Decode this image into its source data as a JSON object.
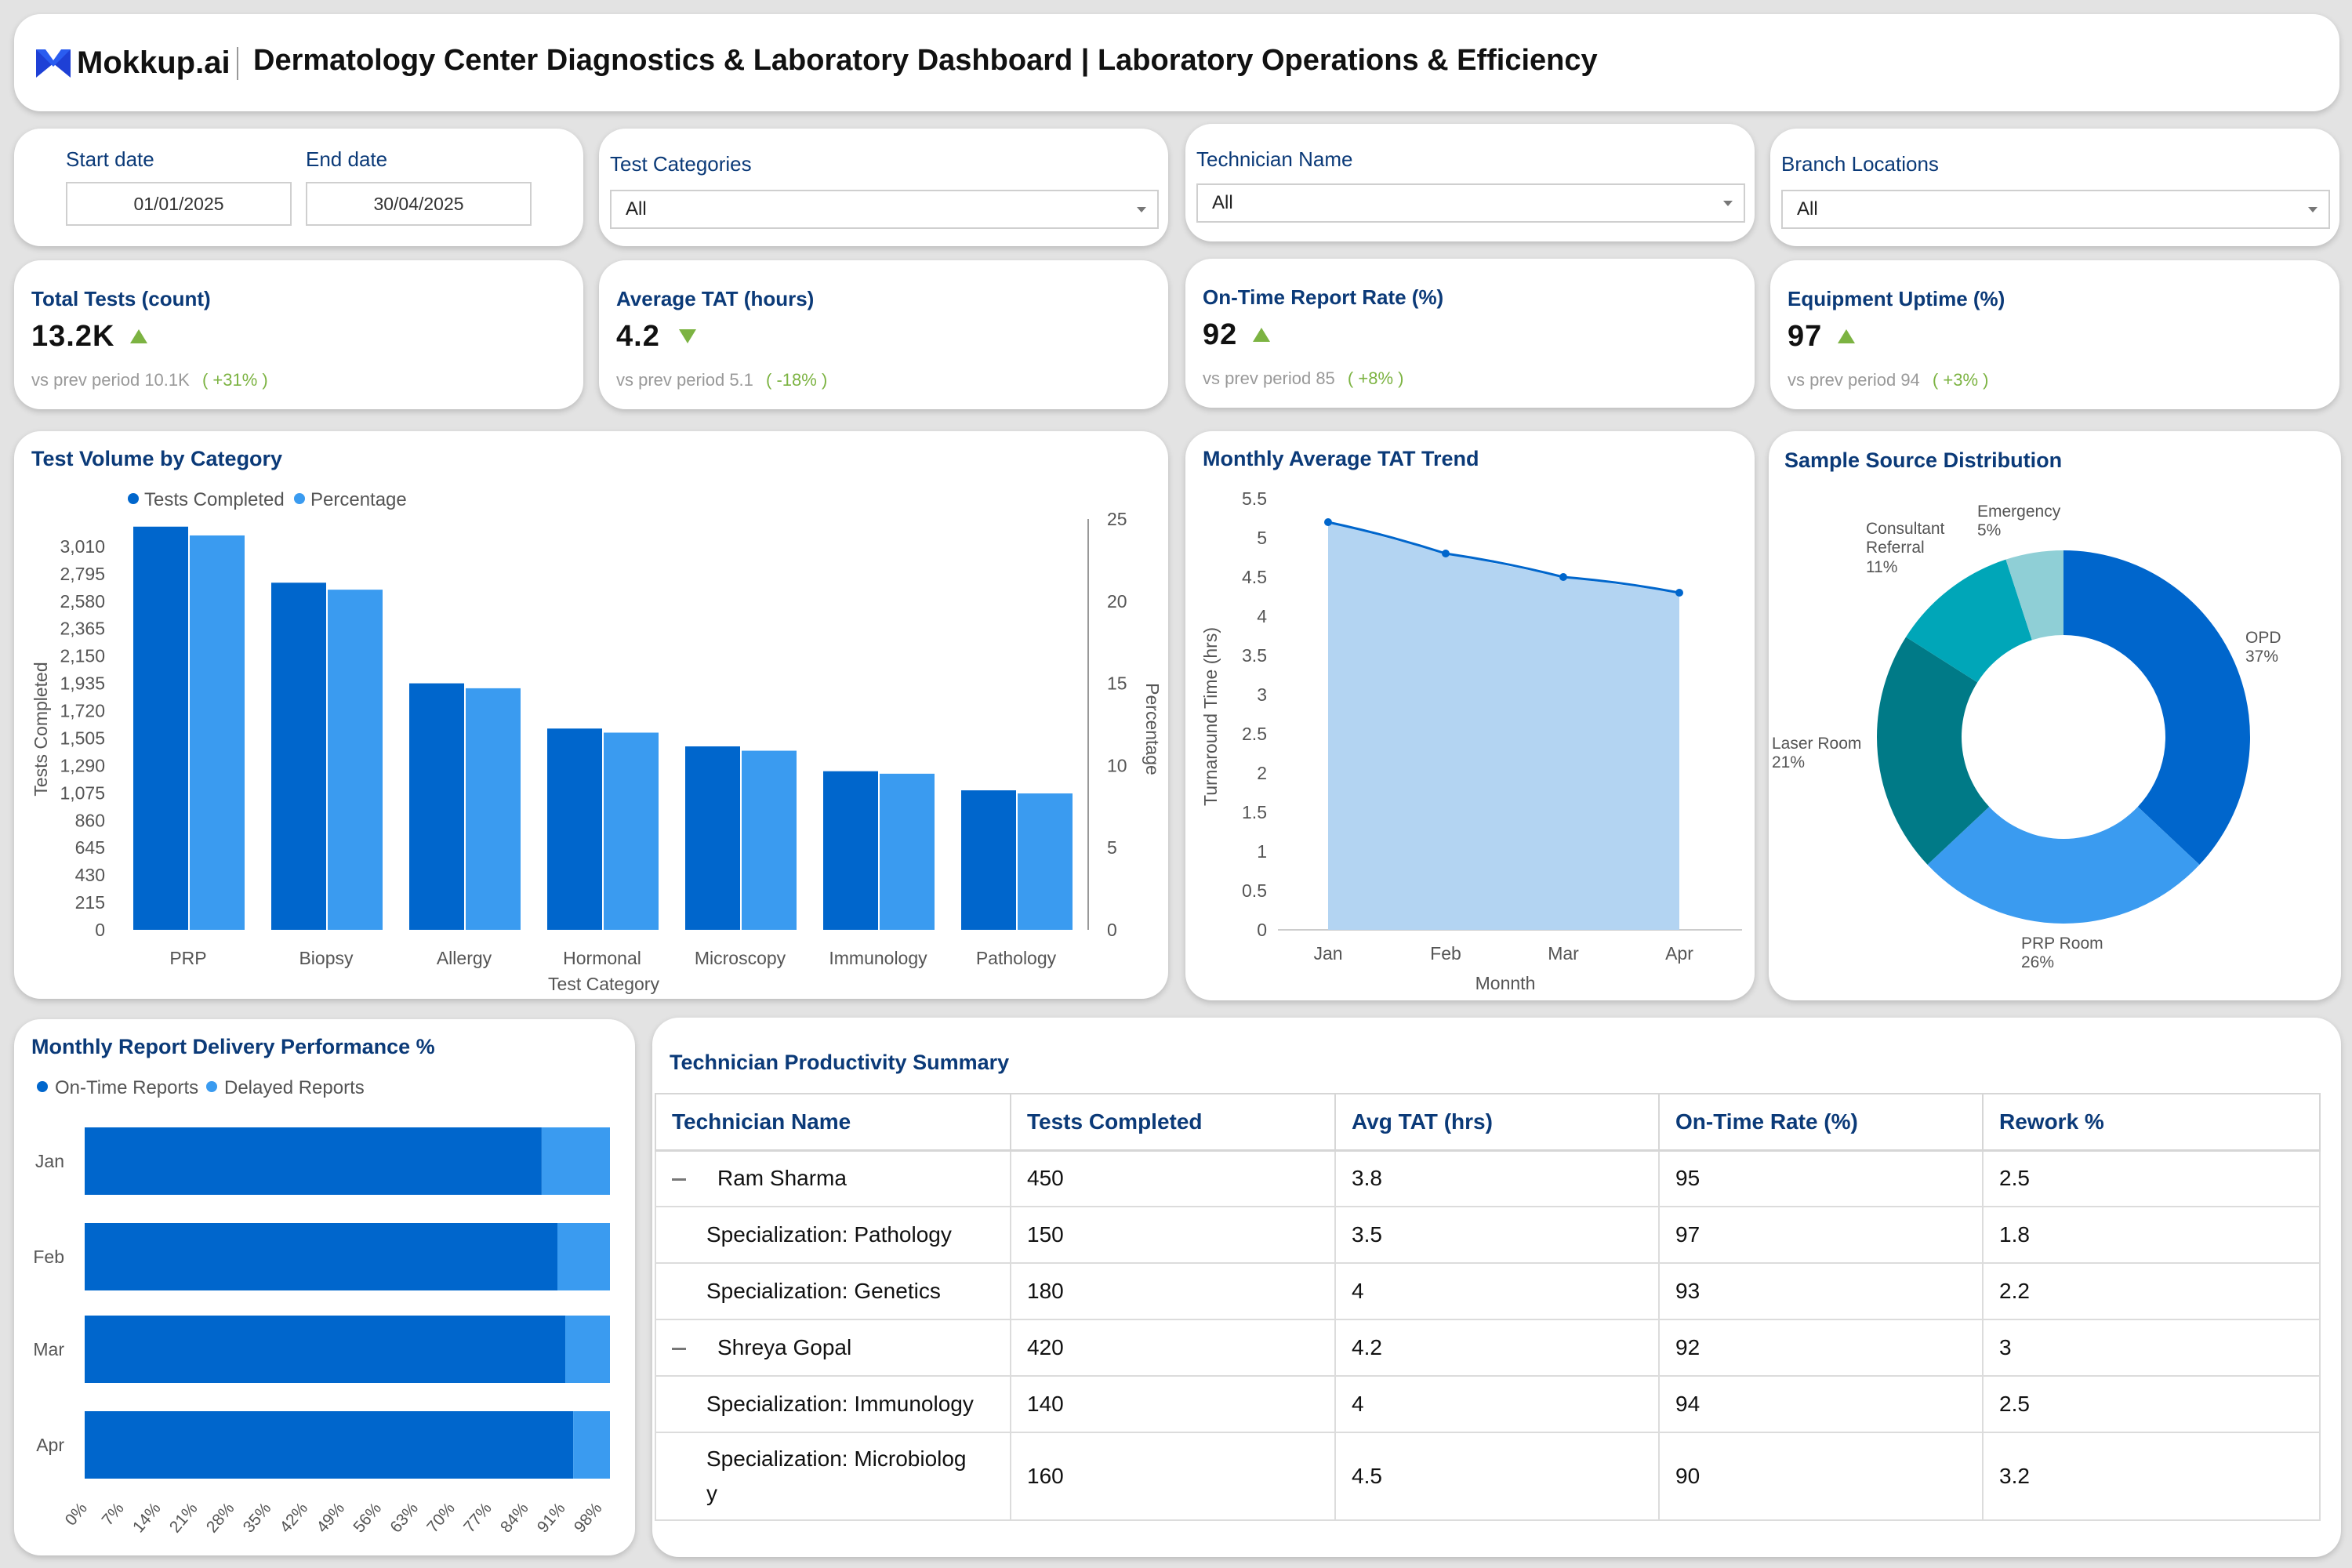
{
  "header": {
    "logo": "Mokkup.ai",
    "title": "Dermatology Center Diagnostics & Laboratory Dashboard | Laboratory Operations & Efficiency"
  },
  "filters": {
    "start_date_label": "Start date",
    "start_date": "01/01/2025",
    "end_date_label": "End date",
    "end_date": "30/04/2025",
    "test_categories_label": "Test Categories",
    "test_categories_value": "All",
    "technician_label": "Technician Name",
    "technician_value": "All",
    "branch_label": "Branch Locations",
    "branch_value": "All"
  },
  "kpis": [
    {
      "label": "Total Tests (count)",
      "value": "13.2K",
      "trend": "up",
      "prev_label": "vs prev period",
      "prev": "10.1K",
      "change": "( +31% )"
    },
    {
      "label": "Average TAT (hours)",
      "value": "4.2",
      "trend": "down",
      "prev_label": "vs prev period",
      "prev": "5.1",
      "change": "( -18% )"
    },
    {
      "label": "On-Time Report Rate (%)",
      "value": "92",
      "trend": "up",
      "prev_label": "vs prev period",
      "prev": "85",
      "change": "( +8% )"
    },
    {
      "label": "Equipment Uptime (%)",
      "value": "97",
      "trend": "up",
      "prev_label": "vs prev period",
      "prev": "94",
      "change": "( +3% )"
    }
  ],
  "colors": {
    "dark_blue": "#0066cc",
    "light_blue": "#3a9bf0",
    "area_fill": "#b3d4f2",
    "teal": "#007a87",
    "cyan": "#00a6b8",
    "pale_teal": "#8fcfd6",
    "up_green": "#7cb342"
  },
  "chart_data": [
    {
      "type": "bar",
      "title": "Test Volume by Category",
      "categories": [
        "PRP",
        "Biopsy",
        "Allergy",
        "Hormonal",
        "Microscopy",
        "Immunology",
        "Pathology"
      ],
      "series": [
        {
          "name": "Tests Completed",
          "values": [
            3165,
            2725,
            1935,
            1580,
            1440,
            1245,
            1095
          ]
        },
        {
          "name": "Percentage",
          "values": [
            24.0,
            20.7,
            14.7,
            12.0,
            10.9,
            9.5,
            8.3
          ]
        }
      ],
      "xlabel": "Test Category",
      "ylabel": "Tests Completed",
      "y2label": "Percentage",
      "ylim": [
        0,
        3225
      ],
      "y2lim": [
        0,
        25
      ],
      "yticks": [
        "0",
        "215",
        "430",
        "645",
        "860",
        "1,075",
        "1,290",
        "1,505",
        "1,720",
        "1,935",
        "2,150",
        "2,365",
        "2,580",
        "2,795",
        "3,010"
      ],
      "y2ticks": [
        "0",
        "5",
        "10",
        "15",
        "20",
        "25"
      ],
      "legend": "top-left"
    },
    {
      "type": "area",
      "title": "Monthly Average TAT Trend",
      "x": [
        "Jan",
        "Feb",
        "Mar",
        "Apr"
      ],
      "values": [
        5.2,
        4.8,
        4.5,
        4.3
      ],
      "xlabel": "Monnth",
      "ylabel": "Turnaround Time (hrs)",
      "ylim": [
        0,
        5.5
      ],
      "yticks": [
        "0",
        "0.5",
        "1",
        "1.5",
        "2",
        "2.5",
        "3",
        "3.5",
        "4",
        "4.5",
        "5",
        "5.5"
      ]
    },
    {
      "type": "pie",
      "title": "Sample Source Distribution",
      "slices": [
        {
          "label": "OPD",
          "pct": "37%",
          "value": 37
        },
        {
          "label": "PRP Room",
          "pct": "26%",
          "value": 26
        },
        {
          "label": "Laser Room",
          "pct": "21%",
          "value": 21
        },
        {
          "label": "Consultant Referral",
          "pct": "11%",
          "value": 11
        },
        {
          "label": "Emergency",
          "pct": "5%",
          "value": 5
        }
      ]
    },
    {
      "type": "bar",
      "orientation": "horizontal-stacked",
      "title": "Monthly Report Delivery Performance %",
      "categories": [
        "Jan",
        "Feb",
        "Mar",
        "Apr"
      ],
      "series": [
        {
          "name": "On-Time Reports",
          "values": [
            87,
            90,
            91.5,
            93
          ]
        },
        {
          "name": "Delayed Reports",
          "values": [
            13,
            10,
            8.5,
            7
          ]
        }
      ],
      "xticks": [
        "0%",
        "7%",
        "14%",
        "21%",
        "28%",
        "35%",
        "42%",
        "49%",
        "56%",
        "63%",
        "70%",
        "77%",
        "84%",
        "91%",
        "98%"
      ],
      "legend": "top-left"
    }
  ],
  "table": {
    "title": "Technician Productivity Summary",
    "headers": [
      "Technician Name",
      "Tests Completed",
      "Avg TAT (hrs)",
      "On-Time Rate (%)",
      "Rework %"
    ],
    "rows": [
      {
        "group": true,
        "name": "Ram Sharma",
        "tests": "450",
        "tat": "3.8",
        "ontime": "95",
        "rework": "2.5"
      },
      {
        "group": false,
        "name": "Specialization: Pathology",
        "tests": "150",
        "tat": "3.5",
        "ontime": "97",
        "rework": "1.8"
      },
      {
        "group": false,
        "name": "Specialization: Genetics",
        "tests": "180",
        "tat": "4",
        "ontime": "93",
        "rework": "2.2"
      },
      {
        "group": true,
        "name": "Shreya Gopal",
        "tests": "420",
        "tat": "4.2",
        "ontime": "92",
        "rework": "3"
      },
      {
        "group": false,
        "name": "Specialization: Immunology",
        "tests": "140",
        "tat": "4",
        "ontime": "94",
        "rework": "2.5"
      },
      {
        "group": false,
        "name": "Specialization: Microbiolog\ny",
        "tests": "160",
        "tat": "4.5",
        "ontime": "90",
        "rework": "3.2"
      }
    ]
  }
}
